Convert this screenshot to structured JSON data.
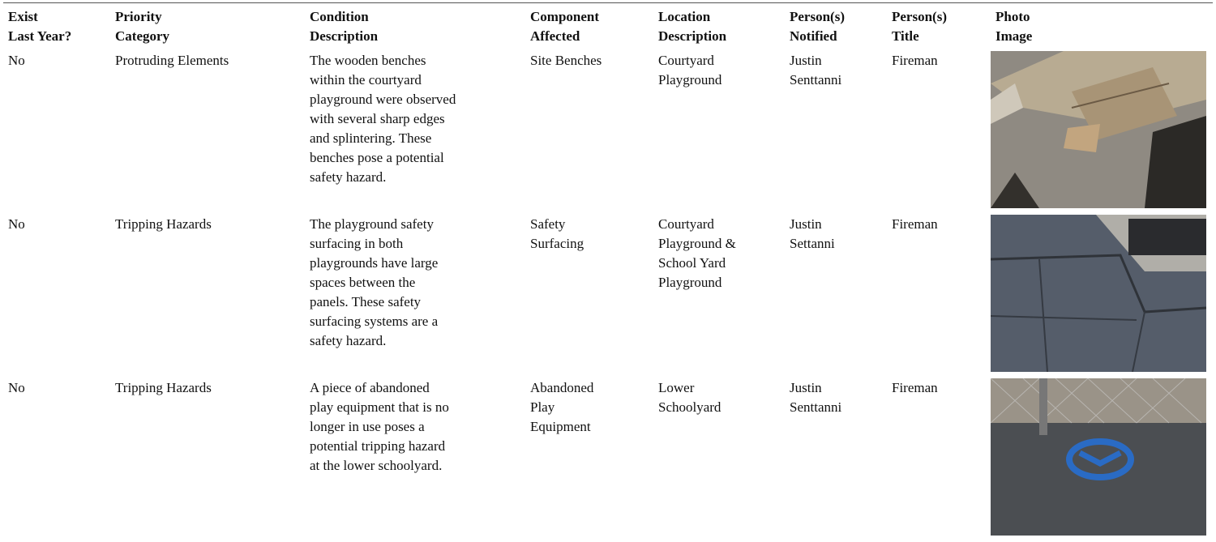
{
  "table": {
    "headers": [
      [
        "Exist",
        "Last Year?"
      ],
      [
        "Priority",
        "Category"
      ],
      [
        "Condition",
        "Description"
      ],
      [
        "Component",
        "Affected"
      ],
      [
        "Location",
        "Description"
      ],
      [
        "Person(s)",
        "Notified"
      ],
      [
        "Person(s)",
        "Title"
      ],
      [
        "Photo",
        "Image"
      ]
    ],
    "rows": [
      [
        [
          "No"
        ],
        [
          "Protruding Elements"
        ],
        [
          "The wooden benches",
          "within the courtyard",
          "playground were observed",
          "with several sharp edges",
          "and splintering. These",
          "benches pose a potential",
          "safety hazard."
        ],
        [
          "Site Benches"
        ],
        [
          "Courtyard",
          "Playground"
        ],
        [
          "Justin",
          "Senttanni"
        ],
        [
          "Fireman"
        ]
      ],
      [
        [
          "No"
        ],
        [
          "Tripping Hazards"
        ],
        [
          "The playground safety",
          "surfacing in both",
          "playgrounds have large",
          "spaces between the",
          "panels. These safety",
          "surfacing systems are a",
          "safety hazard."
        ],
        [
          "Safety",
          "Surfacing"
        ],
        [
          "Courtyard",
          "Playground &",
          "School Yard",
          "Playground"
        ],
        [
          "Justin",
          "Settanni"
        ],
        [
          "Fireman"
        ]
      ],
      [
        [
          "No"
        ],
        [
          "Tripping Hazards"
        ],
        [
          "A piece of abandoned",
          "play equipment that is no",
          "longer in use poses a",
          "potential tripping hazard",
          "at the lower schoolyard."
        ],
        [
          "Abandoned",
          "Play",
          "Equipment"
        ],
        [
          "Lower",
          "Schoolyard"
        ],
        [
          "Justin",
          "Senttanni"
        ],
        [
          "Fireman"
        ]
      ]
    ]
  }
}
